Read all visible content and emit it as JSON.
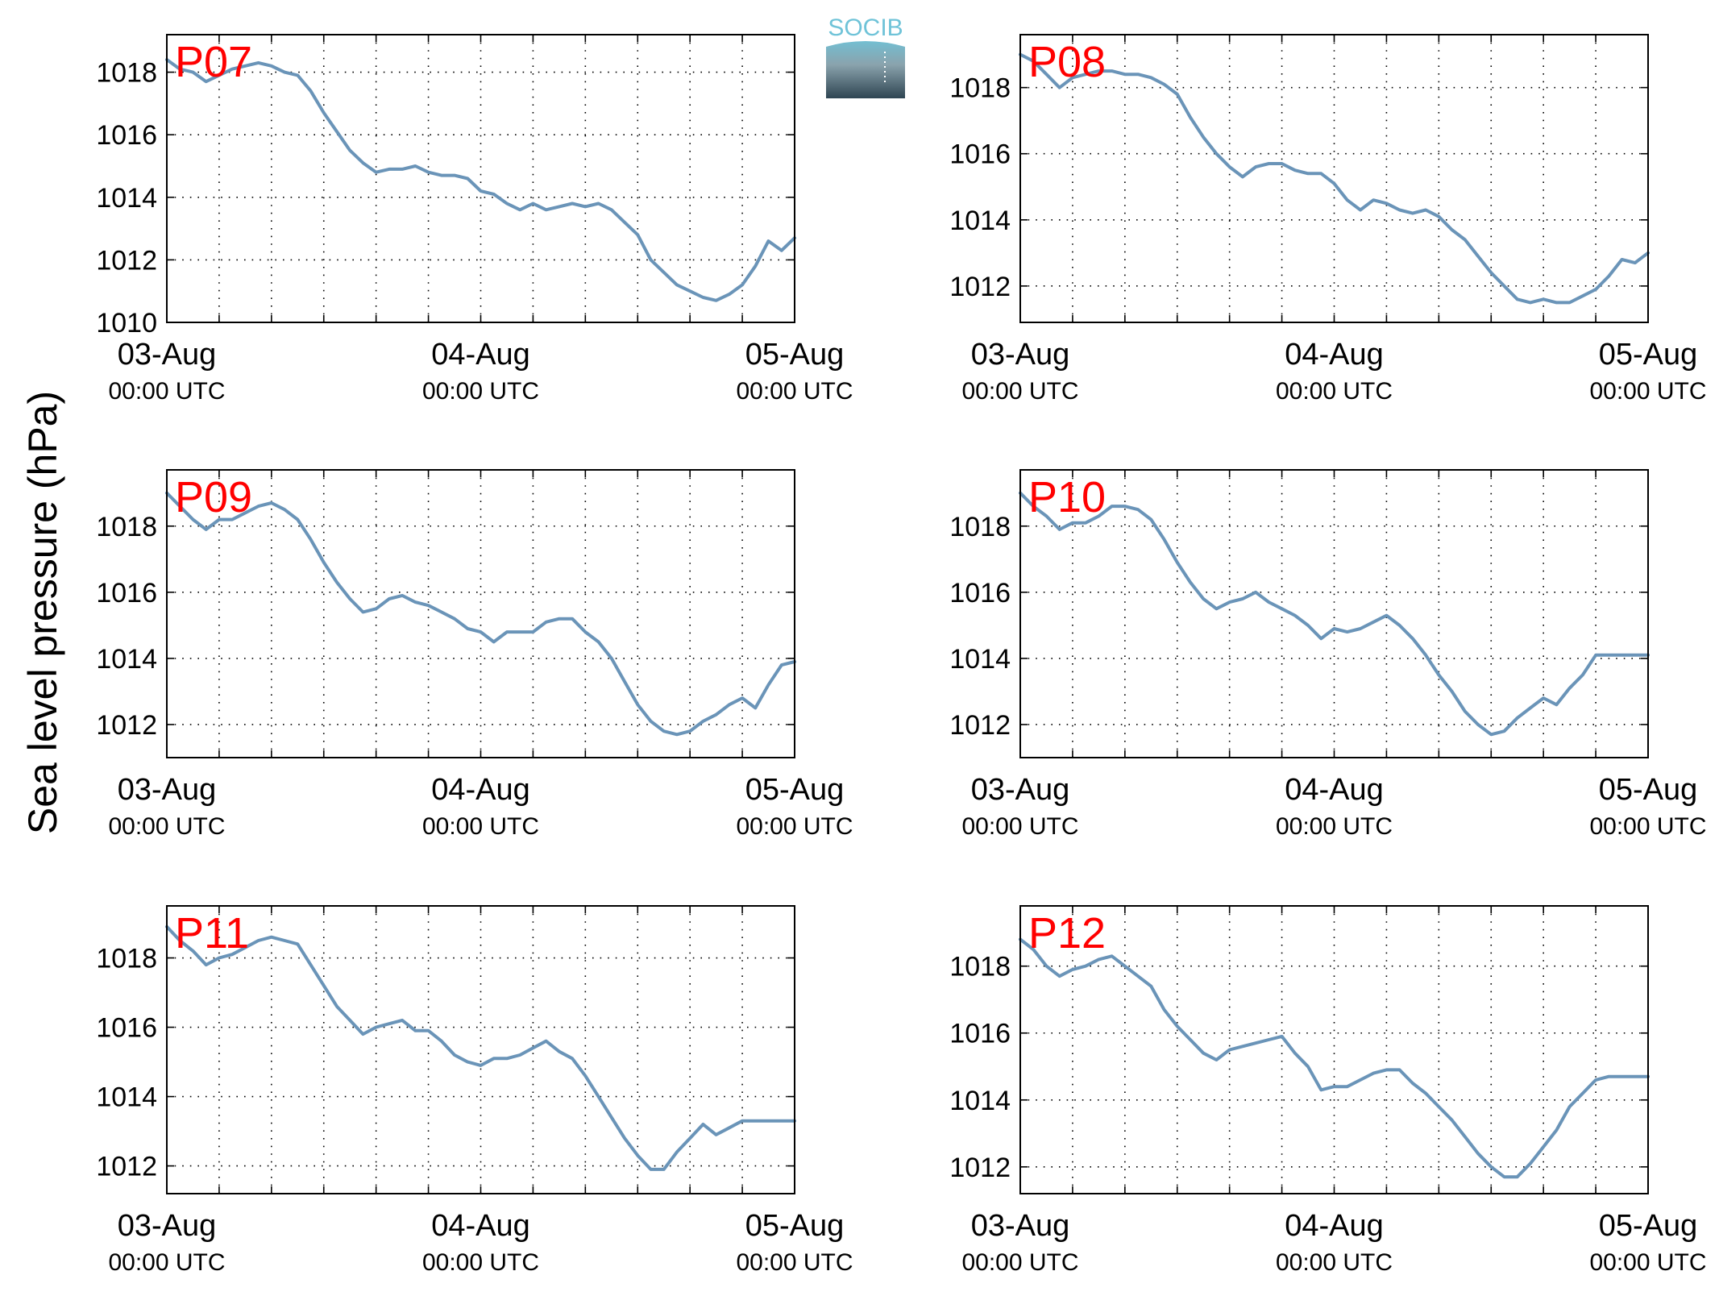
{
  "figure": {
    "ylabel": "Sea level pressure (hPa)",
    "logo_text": "SOCIB",
    "line_color": "#6a94b8",
    "label_color": "#ff0000",
    "logo_top_color": "#6fc3d8",
    "logo_bottom_color": "#2f4552"
  },
  "chart_data": [
    {
      "type": "line",
      "title": "P07",
      "xlabel": "",
      "ylabel": "",
      "x_ticks": [
        [
          "03-Aug",
          "00:00 UTC"
        ],
        [
          "04-Aug",
          "00:00 UTC"
        ],
        [
          "05-Aug",
          "00:00 UTC"
        ]
      ],
      "x_unit": "hours since 03-Aug 00:00 UTC",
      "xlim": [
        0,
        48
      ],
      "y_ticks": [
        1010,
        1012,
        1014,
        1016,
        1018
      ],
      "ylim": [
        1010,
        1019.2
      ],
      "grid": true,
      "series": [
        {
          "x": [
            0,
            1,
            2,
            3,
            4,
            5,
            6,
            7,
            8,
            9,
            10,
            11,
            12,
            13,
            14,
            15,
            16,
            17,
            18,
            19,
            20,
            21,
            22,
            23,
            24,
            25,
            26,
            27,
            28,
            29,
            30,
            31,
            32,
            33,
            34,
            35,
            36,
            37,
            38,
            39,
            40,
            41,
            42,
            43,
            44,
            45,
            46,
            47,
            48
          ],
          "values": [
            1018.4,
            1018.1,
            1018.0,
            1017.7,
            1017.9,
            1018.1,
            1018.2,
            1018.3,
            1018.2,
            1018.0,
            1017.9,
            1017.4,
            1016.7,
            1016.1,
            1015.5,
            1015.1,
            1014.8,
            1014.9,
            1014.9,
            1015.0,
            1014.8,
            1014.7,
            1014.7,
            1014.6,
            1014.2,
            1014.1,
            1013.8,
            1013.6,
            1013.8,
            1013.6,
            1013.7,
            1013.8,
            1013.7,
            1013.8,
            1013.6,
            1013.2,
            1012.8,
            1012.0,
            1011.6,
            1011.2,
            1011.0,
            1010.8,
            1010.7,
            1010.9,
            1011.2,
            1011.8,
            1012.6,
            1012.3,
            1012.7
          ]
        }
      ]
    },
    {
      "type": "line",
      "title": "P08",
      "xlabel": "",
      "ylabel": "",
      "x_ticks": [
        [
          "03-Aug",
          "00:00 UTC"
        ],
        [
          "04-Aug",
          "00:00 UTC"
        ],
        [
          "05-Aug",
          "00:00 UTC"
        ]
      ],
      "x_unit": "hours since 03-Aug 00:00 UTC",
      "xlim": [
        0,
        48
      ],
      "y_ticks": [
        1012,
        1014,
        1016,
        1018
      ],
      "ylim": [
        1010.9,
        1019.6
      ],
      "grid": true,
      "series": [
        {
          "x": [
            0,
            1,
            2,
            3,
            4,
            5,
            6,
            7,
            8,
            9,
            10,
            11,
            12,
            13,
            14,
            15,
            16,
            17,
            18,
            19,
            20,
            21,
            22,
            23,
            24,
            25,
            26,
            27,
            28,
            29,
            30,
            31,
            32,
            33,
            34,
            35,
            36,
            37,
            38,
            39,
            40,
            41,
            42,
            43,
            44,
            45,
            46,
            47,
            48
          ],
          "values": [
            1019.0,
            1018.8,
            1018.4,
            1018.0,
            1018.3,
            1018.4,
            1018.5,
            1018.5,
            1018.4,
            1018.4,
            1018.3,
            1018.1,
            1017.8,
            1017.1,
            1016.5,
            1016.0,
            1015.6,
            1015.3,
            1015.6,
            1015.7,
            1015.7,
            1015.5,
            1015.4,
            1015.4,
            1015.1,
            1014.6,
            1014.3,
            1014.6,
            1014.5,
            1014.3,
            1014.2,
            1014.3,
            1014.1,
            1013.7,
            1013.4,
            1012.9,
            1012.4,
            1012.0,
            1011.6,
            1011.5,
            1011.6,
            1011.5,
            1011.5,
            1011.7,
            1011.9,
            1012.3,
            1012.8,
            1012.7,
            1013.0
          ]
        }
      ]
    },
    {
      "type": "line",
      "title": "P09",
      "xlabel": "",
      "ylabel": "",
      "x_ticks": [
        [
          "03-Aug",
          "00:00 UTC"
        ],
        [
          "04-Aug",
          "00:00 UTC"
        ],
        [
          "05-Aug",
          "00:00 UTC"
        ]
      ],
      "x_unit": "hours since 03-Aug 00:00 UTC",
      "xlim": [
        0,
        48
      ],
      "y_ticks": [
        1012,
        1014,
        1016,
        1018
      ],
      "ylim": [
        1011.0,
        1019.7
      ],
      "grid": true,
      "series": [
        {
          "x": [
            0,
            1,
            2,
            3,
            4,
            5,
            6,
            7,
            8,
            9,
            10,
            11,
            12,
            13,
            14,
            15,
            16,
            17,
            18,
            19,
            20,
            21,
            22,
            23,
            24,
            25,
            26,
            27,
            28,
            29,
            30,
            31,
            32,
            33,
            34,
            35,
            36,
            37,
            38,
            39,
            40,
            41,
            42,
            43,
            44,
            45,
            46,
            47,
            48
          ],
          "values": [
            1019.0,
            1018.6,
            1018.2,
            1017.9,
            1018.2,
            1018.2,
            1018.4,
            1018.6,
            1018.7,
            1018.5,
            1018.2,
            1017.6,
            1016.9,
            1016.3,
            1015.8,
            1015.4,
            1015.5,
            1015.8,
            1015.9,
            1015.7,
            1015.6,
            1015.4,
            1015.2,
            1014.9,
            1014.8,
            1014.5,
            1014.8,
            1014.8,
            1014.8,
            1015.1,
            1015.2,
            1015.2,
            1014.8,
            1014.5,
            1014.0,
            1013.3,
            1012.6,
            1012.1,
            1011.8,
            1011.7,
            1011.8,
            1012.1,
            1012.3,
            1012.6,
            1012.8,
            1012.5,
            1013.2,
            1013.8,
            1013.9
          ]
        }
      ]
    },
    {
      "type": "line",
      "title": "P10",
      "xlabel": "",
      "ylabel": "",
      "x_ticks": [
        [
          "03-Aug",
          "00:00 UTC"
        ],
        [
          "04-Aug",
          "00:00 UTC"
        ],
        [
          "05-Aug",
          "00:00 UTC"
        ]
      ],
      "x_unit": "hours since 03-Aug 00:00 UTC",
      "xlim": [
        0,
        48
      ],
      "y_ticks": [
        1012,
        1014,
        1016,
        1018
      ],
      "ylim": [
        1011.0,
        1019.7
      ],
      "grid": true,
      "series": [
        {
          "x": [
            0,
            1,
            2,
            3,
            4,
            5,
            6,
            7,
            8,
            9,
            10,
            11,
            12,
            13,
            14,
            15,
            16,
            17,
            18,
            19,
            20,
            21,
            22,
            23,
            24,
            25,
            26,
            27,
            28,
            29,
            30,
            31,
            32,
            33,
            34,
            35,
            36,
            37,
            38,
            39,
            40,
            41,
            42,
            43,
            44,
            45,
            46,
            47,
            48
          ],
          "values": [
            1019.0,
            1018.6,
            1018.3,
            1017.9,
            1018.1,
            1018.1,
            1018.3,
            1018.6,
            1018.6,
            1018.5,
            1018.2,
            1017.6,
            1016.9,
            1016.3,
            1015.8,
            1015.5,
            1015.7,
            1015.8,
            1016.0,
            1015.7,
            1015.5,
            1015.3,
            1015.0,
            1014.6,
            1014.9,
            1014.8,
            1014.9,
            1015.1,
            1015.3,
            1015.0,
            1014.6,
            1014.1,
            1013.5,
            1013.0,
            1012.4,
            1012.0,
            1011.7,
            1011.8,
            1012.2,
            1012.5,
            1012.8,
            1012.6,
            1013.1,
            1013.5,
            1014.1,
            1014.1,
            1014.1,
            1014.1,
            1014.1
          ]
        }
      ]
    },
    {
      "type": "line",
      "title": "P11",
      "xlabel": "",
      "ylabel": "",
      "x_ticks": [
        [
          "03-Aug",
          "00:00 UTC"
        ],
        [
          "04-Aug",
          "00:00 UTC"
        ],
        [
          "05-Aug",
          "00:00 UTC"
        ]
      ],
      "x_unit": "hours since 03-Aug 00:00 UTC",
      "xlim": [
        0,
        48
      ],
      "y_ticks": [
        1012,
        1014,
        1016,
        1018
      ],
      "ylim": [
        1011.2,
        1019.5
      ],
      "grid": true,
      "series": [
        {
          "x": [
            0,
            1,
            2,
            3,
            4,
            5,
            6,
            7,
            8,
            9,
            10,
            11,
            12,
            13,
            14,
            15,
            16,
            17,
            18,
            19,
            20,
            21,
            22,
            23,
            24,
            25,
            26,
            27,
            28,
            29,
            30,
            31,
            32,
            33,
            34,
            35,
            36,
            37,
            38,
            39,
            40,
            41,
            42,
            43,
            44,
            45,
            46,
            47,
            48
          ],
          "values": [
            1018.9,
            1018.5,
            1018.2,
            1017.8,
            1018.0,
            1018.1,
            1018.3,
            1018.5,
            1018.6,
            1018.5,
            1018.4,
            1017.8,
            1017.2,
            1016.6,
            1016.2,
            1015.8,
            1016.0,
            1016.1,
            1016.2,
            1015.9,
            1015.9,
            1015.6,
            1015.2,
            1015.0,
            1014.9,
            1015.1,
            1015.1,
            1015.2,
            1015.4,
            1015.6,
            1015.3,
            1015.1,
            1014.6,
            1014.0,
            1013.4,
            1012.8,
            1012.3,
            1011.9,
            1011.9,
            1012.4,
            1012.8,
            1013.2,
            1012.9,
            1013.1,
            1013.3,
            1013.3,
            1013.3,
            1013.3,
            1013.3
          ]
        }
      ]
    },
    {
      "type": "line",
      "title": "P12",
      "xlabel": "",
      "ylabel": "",
      "x_ticks": [
        [
          "03-Aug",
          "00:00 UTC"
        ],
        [
          "04-Aug",
          "00:00 UTC"
        ],
        [
          "05-Aug",
          "00:00 UTC"
        ]
      ],
      "x_unit": "hours since 03-Aug 00:00 UTC",
      "xlim": [
        0,
        48
      ],
      "y_ticks": [
        1012,
        1014,
        1016,
        1018
      ],
      "ylim": [
        1011.2,
        1019.8
      ],
      "grid": true,
      "series": [
        {
          "x": [
            0,
            1,
            2,
            3,
            4,
            5,
            6,
            7,
            8,
            9,
            10,
            11,
            12,
            13,
            14,
            15,
            16,
            17,
            18,
            19,
            20,
            21,
            22,
            23,
            24,
            25,
            26,
            27,
            28,
            29,
            30,
            31,
            32,
            33,
            34,
            35,
            36,
            37,
            38,
            39,
            40,
            41,
            42,
            43,
            44,
            45,
            46,
            47,
            48
          ],
          "values": [
            1018.8,
            1018.5,
            1018.0,
            1017.7,
            1017.9,
            1018.0,
            1018.2,
            1018.3,
            1018.0,
            1017.7,
            1017.4,
            1016.7,
            1016.2,
            1015.8,
            1015.4,
            1015.2,
            1015.5,
            1015.6,
            1015.7,
            1015.8,
            1015.9,
            1015.4,
            1015.0,
            1014.3,
            1014.4,
            1014.4,
            1014.6,
            1014.8,
            1014.9,
            1014.9,
            1014.5,
            1014.2,
            1013.8,
            1013.4,
            1012.9,
            1012.4,
            1012.0,
            1011.7,
            1011.7,
            1012.1,
            1012.6,
            1013.1,
            1013.8,
            1014.2,
            1014.6,
            1014.7,
            1014.7,
            1014.7,
            1014.7
          ]
        }
      ]
    }
  ]
}
